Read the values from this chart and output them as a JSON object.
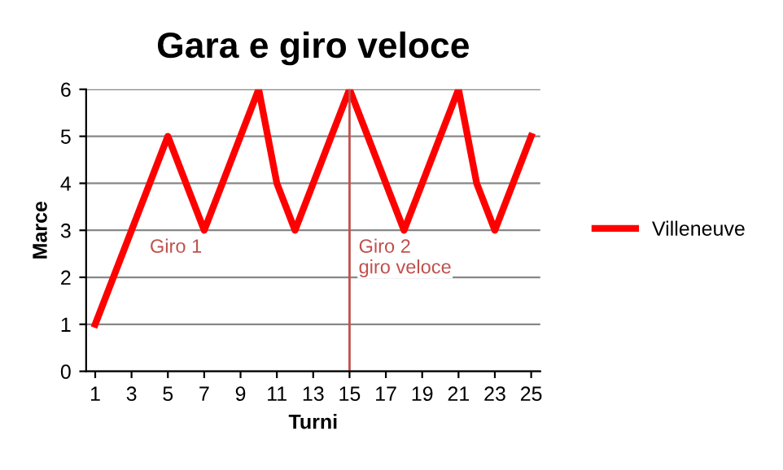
{
  "chart_data": {
    "type": "line",
    "title": "Gara e giro veloce",
    "xlabel": "Turni",
    "ylabel": "Marce",
    "x": [
      1,
      2,
      3,
      4,
      5,
      6,
      7,
      8,
      9,
      10,
      11,
      12,
      13,
      14,
      15,
      16,
      17,
      18,
      19,
      20,
      21,
      22,
      23,
      24,
      25
    ],
    "series": [
      {
        "name": "Villeneuve",
        "color": "#ff0000",
        "values": [
          1,
          2,
          3,
          4,
          5,
          4,
          3,
          4,
          5,
          6,
          4,
          3,
          4,
          5,
          6,
          5,
          4,
          3,
          4,
          5,
          6,
          4,
          3,
          4,
          5
        ]
      }
    ],
    "xlim": [
      0.5,
      25.5
    ],
    "xticks": [
      1,
      3,
      5,
      7,
      9,
      11,
      13,
      15,
      17,
      19,
      21,
      23,
      25
    ],
    "ylim": [
      0,
      6
    ],
    "yticks": [
      0,
      1,
      2,
      3,
      4,
      5,
      6
    ],
    "grid": "y",
    "legend": "right",
    "marker": "none",
    "line_style": "solid",
    "ref_lines": [
      {
        "axis": "x",
        "value": 15,
        "color": "#c0504d",
        "line_style": "solid",
        "label": "Giro 2\ngiro veloce"
      }
    ],
    "annotations": [
      "Giro 1"
    ]
  }
}
